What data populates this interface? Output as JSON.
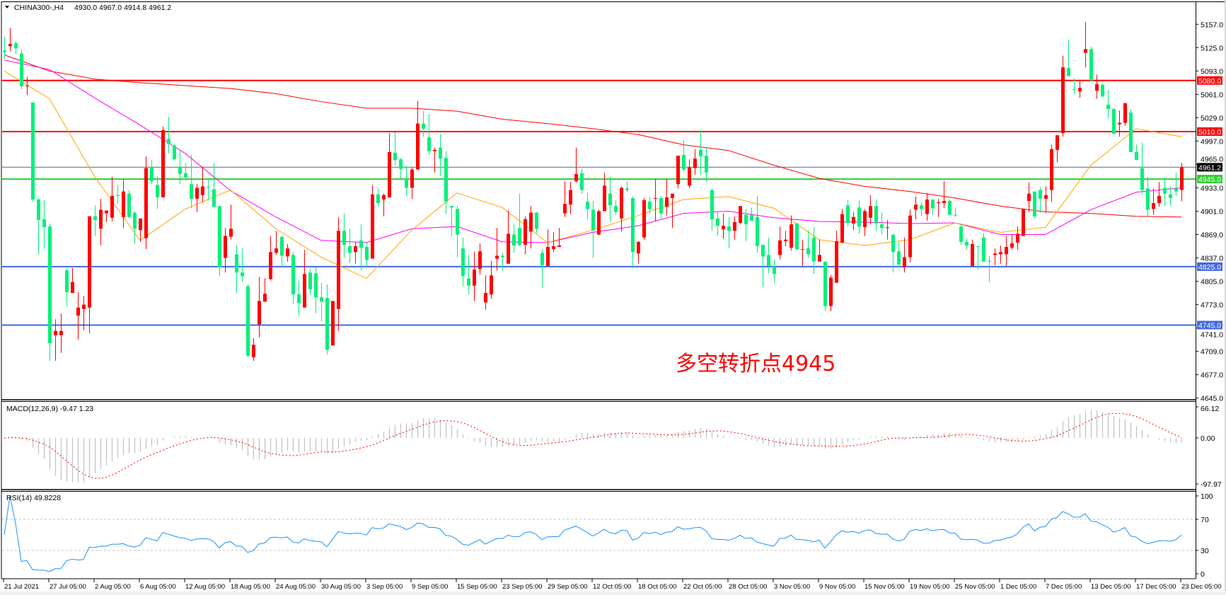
{
  "header": {
    "symbol": "CHINA300-,H4",
    "ohlc": "4930.0 4967.0 4914.8 4961.2",
    "menu_icon": "triangle-down-icon"
  },
  "annotation": "多空转折点4945",
  "colors": {
    "bull": "#ff0000",
    "bear": "#00f07a",
    "wick_bull": "#ff0000",
    "wick_bear": "#00f07a"
  },
  "chart_data": {
    "type": "candlestick",
    "timeframe": "H4",
    "ylim": [
      4645,
      5157
    ],
    "price_ticks": [
      "5157.0",
      "5125.0",
      "5093.0",
      "5061.0",
      "5029.0",
      "4997.0",
      "4965.0",
      "4933.0",
      "4901.0",
      "4869.0",
      "4837.0",
      "4805.0",
      "4773.0",
      "4741.0",
      "4709.0",
      "4677.0",
      "4645.0"
    ],
    "x_tick_labels": [
      "21 Jul 2021",
      "27 Jul 05:00",
      "2 Aug 05:00",
      "6 Aug 05:00",
      "12 Aug 05:00",
      "18 Aug 05:00",
      "24 Aug 05:00",
      "30 Aug 05:00",
      "3 Sep 05:00",
      "9 Sep 05:00",
      "15 Sep 05:00",
      "23 Sep 05:00",
      "29 Sep 05:00",
      "12 Oct 05:00",
      "18 Oct 05:00",
      "22 Oct 05:00",
      "28 Oct 05:00",
      "3 Nov 05:00",
      "9 Nov 05:00",
      "15 Nov 05:00",
      "19 Nov 05:00",
      "25 Nov 05:00",
      "1 Dec 05:00",
      "7 Dec 05:00",
      "13 Dec 05:00",
      "17 Dec 05:00",
      "23 Dec 05:00"
    ],
    "levels": [
      {
        "value": 5080.0,
        "label": "5080.0",
        "color": "#ff0000"
      },
      {
        "value": 5010.0,
        "label": "5010.0",
        "color": "#ff0000"
      },
      {
        "value": 4961.2,
        "label": "4961.2",
        "color": "#778899",
        "label_bg": "#000000"
      },
      {
        "value": 4945.0,
        "label": "4945.0",
        "color": "#32cd32"
      },
      {
        "value": 4825.0,
        "label": "4825.0",
        "color": "#4169e1"
      },
      {
        "value": 4745.0,
        "label": "4745.0",
        "color": "#4169e1"
      }
    ],
    "moving_averages": [
      {
        "color": "#ff0000",
        "values": [
          5115,
          5093,
          5082,
          5077,
          5073,
          5069,
          5062,
          5051,
          5042,
          5042,
          5038,
          5027,
          5021,
          5014,
          5006,
          4992,
          4984,
          4964,
          4946,
          4935,
          4928,
          4919,
          4908,
          4900,
          4898,
          4894,
          4893
        ]
      },
      {
        "color": "#ff00ff",
        "values": [
          5108,
          5095,
          5056,
          5019,
          4980,
          4929,
          4893,
          4861,
          4858,
          4877,
          4880,
          4859,
          4858,
          4872,
          4881,
          4898,
          4901,
          4892,
          4887,
          4886,
          4884,
          4885,
          4869,
          4869,
          4903,
          4927,
          4933
        ]
      },
      {
        "color": "#ffa500",
        "values": [
          5093,
          5055,
          4948,
          4861,
          4904,
          4930,
          4877,
          4838,
          4809,
          4875,
          4926,
          4906,
          4858,
          4875,
          4895,
          4917,
          4921,
          4905,
          4862,
          4854,
          4862,
          4885,
          4872,
          4879,
          4964,
          5014,
          5003
        ]
      }
    ],
    "candles": [
      [
        5121,
        5140,
        5110,
        5119
      ],
      [
        5127,
        5152,
        5120,
        5130
      ],
      [
        5131,
        5134,
        5116,
        5124
      ],
      [
        5117,
        5123,
        5068,
        5072
      ],
      [
        5072,
        5085,
        5060,
        5073
      ],
      [
        5050,
        5050,
        4914,
        4917
      ],
      [
        4917,
        4919,
        4842,
        4889
      ],
      [
        4890,
        4916,
        4850,
        4879
      ],
      [
        4880,
        4884,
        4696,
        4720
      ],
      [
        4731,
        4753,
        4696,
        4737
      ],
      [
        4731,
        4761,
        4707,
        4737
      ],
      [
        4820,
        4823,
        4770,
        4790
      ],
      [
        4789,
        4823,
        4789,
        4804
      ],
      [
        4758,
        4790,
        4725,
        4769
      ],
      [
        4767,
        4785,
        4738,
        4773
      ],
      [
        4769,
        4894,
        4734,
        4894
      ],
      [
        4894,
        4909,
        4867,
        4889
      ],
      [
        4877,
        4918,
        4854,
        4903
      ],
      [
        4898,
        4902,
        4886,
        4902
      ],
      [
        4892,
        4948,
        4887,
        4922
      ],
      [
        4923,
        4937,
        4911,
        4922
      ],
      [
        4893,
        4945,
        4878,
        4928
      ],
      [
        4925,
        4930,
        4892,
        4893
      ],
      [
        4899,
        4901,
        4856,
        4877
      ],
      [
        4875,
        4891,
        4859,
        4891
      ],
      [
        4864,
        4976,
        4849,
        4960
      ],
      [
        4961,
        4971,
        4938,
        4942
      ],
      [
        4937,
        4949,
        4904,
        4920
      ],
      [
        4920,
        5017,
        4920,
        5012
      ],
      [
        5000,
        5030,
        4980,
        4993
      ],
      [
        4991,
        4993,
        4970,
        4972
      ],
      [
        4961,
        4984,
        4938,
        4952
      ],
      [
        4953,
        4967,
        4943,
        4947
      ],
      [
        4938,
        4978,
        4905,
        4918
      ],
      [
        4918,
        4938,
        4900,
        4933
      ],
      [
        4923,
        4962,
        4913,
        4935
      ],
      [
        4934,
        4945,
        4916,
        4933
      ],
      [
        4931,
        4967,
        4906,
        4907
      ],
      [
        4908,
        4908,
        4812,
        4824
      ],
      [
        4837,
        4878,
        4817,
        4867
      ],
      [
        4866,
        4910,
        4862,
        4877
      ],
      [
        4842,
        4854,
        4788,
        4817
      ],
      [
        4817,
        4850,
        4804,
        4812
      ],
      [
        4798,
        4801,
        4701,
        4703
      ],
      [
        4701,
        4727,
        4696,
        4718
      ],
      [
        4746,
        4811,
        4728,
        4778
      ],
      [
        4777,
        4809,
        4777,
        4788
      ],
      [
        4808,
        4867,
        4806,
        4845
      ],
      [
        4844,
        4874,
        4841,
        4850
      ],
      [
        4866,
        4866,
        4824,
        4840
      ],
      [
        4839,
        4856,
        4832,
        4850
      ],
      [
        4841,
        4845,
        4774,
        4787
      ],
      [
        4787,
        4806,
        4758,
        4775
      ],
      [
        4769,
        4848,
        4769,
        4815
      ],
      [
        4817,
        4822,
        4786,
        4794
      ],
      [
        4816,
        4824,
        4761,
        4783
      ],
      [
        4783,
        4803,
        4750,
        4777
      ],
      [
        4782,
        4801,
        4705,
        4711
      ],
      [
        4717,
        4778,
        4717,
        4778
      ],
      [
        4767,
        4893,
        4737,
        4874
      ],
      [
        4874,
        4898,
        4837,
        4855
      ],
      [
        4853,
        4877,
        4830,
        4844
      ],
      [
        4845,
        4859,
        4829,
        4853
      ],
      [
        4861,
        4883,
        4820,
        4851
      ],
      [
        4852,
        4858,
        4825,
        4834
      ],
      [
        4836,
        4937,
        4836,
        4924
      ],
      [
        4924,
        4932,
        4907,
        4912
      ],
      [
        4917,
        4925,
        4894,
        4923
      ],
      [
        4920,
        5008,
        4919,
        4982
      ],
      [
        4981,
        5009,
        4964,
        4971
      ],
      [
        4972,
        4974,
        4946,
        4959
      ],
      [
        4945,
        4963,
        4922,
        4933
      ],
      [
        4933,
        4961,
        4918,
        4958
      ],
      [
        4958,
        5052,
        4958,
        5021
      ],
      [
        5021,
        5038,
        5003,
        5014
      ],
      [
        5002,
        5034,
        4978,
        4983
      ],
      [
        4983,
        4988,
        4954,
        4985
      ],
      [
        4988,
        5007,
        4949,
        4973
      ],
      [
        4974,
        4983,
        4897,
        4914
      ],
      [
        4908,
        4908,
        4867,
        4906
      ],
      [
        4904,
        4908,
        4838,
        4869
      ],
      [
        4850,
        4865,
        4798,
        4812
      ],
      [
        4809,
        4841,
        4787,
        4799
      ],
      [
        4799,
        4846,
        4778,
        4821
      ],
      [
        4822,
        4857,
        4814,
        4846
      ],
      [
        4776,
        4813,
        4766,
        4789
      ],
      [
        4787,
        4833,
        4781,
        4813
      ],
      [
        4836,
        4878,
        4820,
        4840
      ],
      [
        4840,
        4844,
        4820,
        4838
      ],
      [
        4829,
        4902,
        4829,
        4870
      ],
      [
        4869,
        4883,
        4844,
        4854
      ],
      [
        4878,
        4925,
        4853,
        4855
      ],
      [
        4855,
        4894,
        4842,
        4890
      ],
      [
        4873,
        4908,
        4850,
        4899
      ],
      [
        4899,
        4900,
        4871,
        4877
      ],
      [
        4844,
        4849,
        4796,
        4827
      ],
      [
        4826,
        4876,
        4826,
        4852
      ],
      [
        4849,
        4872,
        4845,
        4853
      ],
      [
        4852,
        4878,
        4852,
        4854
      ],
      [
        4898,
        4942,
        4893,
        4911
      ],
      [
        4910,
        4941,
        4897,
        4930
      ],
      [
        4942,
        4988,
        4940,
        4952
      ],
      [
        4953,
        4959,
        4925,
        4930
      ],
      [
        4914,
        4926,
        4890,
        4904
      ],
      [
        4903,
        4915,
        4837,
        4875
      ],
      [
        4869,
        4903,
        4868,
        4901
      ],
      [
        4901,
        4954,
        4901,
        4936
      ],
      [
        4925,
        4948,
        4887,
        4909
      ],
      [
        4908,
        4916,
        4896,
        4900
      ],
      [
        4891,
        4935,
        4873,
        4933
      ],
      [
        4932,
        4942,
        4927,
        4930
      ],
      [
        4919,
        4921,
        4823,
        4845
      ],
      [
        4843,
        4860,
        4829,
        4859
      ],
      [
        4865,
        4919,
        4862,
        4916
      ],
      [
        4914,
        4921,
        4898,
        4904
      ],
      [
        4918,
        4945,
        4887,
        4919
      ],
      [
        4919,
        4922,
        4891,
        4898
      ],
      [
        4907,
        4945,
        4895,
        4920
      ],
      [
        4919,
        4925,
        4878,
        4925
      ],
      [
        4938,
        4977,
        4932,
        4977
      ],
      [
        4978,
        4998,
        4955,
        4958
      ],
      [
        4936,
        4972,
        4933,
        4961
      ],
      [
        4960,
        4986,
        4951,
        4973
      ],
      [
        4985,
        5012,
        4951,
        4976
      ],
      [
        4977,
        4987,
        4941,
        4954
      ],
      [
        4930,
        4932,
        4874,
        4890
      ],
      [
        4891,
        4899,
        4868,
        4881
      ],
      [
        4876,
        4898,
        4863,
        4881
      ],
      [
        4880,
        4893,
        4850,
        4874
      ],
      [
        4874,
        4894,
        4862,
        4886
      ],
      [
        4885,
        4908,
        4883,
        4908
      ],
      [
        4896,
        4904,
        4860,
        4883
      ],
      [
        4896,
        4906,
        4888,
        4888
      ],
      [
        4893,
        4922,
        4844,
        4853
      ],
      [
        4855,
        4855,
        4797,
        4839
      ],
      [
        4841,
        4865,
        4816,
        4826
      ],
      [
        4825,
        4835,
        4803,
        4815
      ],
      [
        4841,
        4880,
        4835,
        4861
      ],
      [
        4860,
        4874,
        4853,
        4862
      ],
      [
        4851,
        4895,
        4847,
        4883
      ],
      [
        4884,
        4885,
        4848,
        4849
      ],
      [
        4849,
        4862,
        4826,
        4849
      ],
      [
        4850,
        4875,
        4837,
        4842
      ],
      [
        4865,
        4879,
        4815,
        4832
      ],
      [
        4832,
        4862,
        4832,
        4841
      ],
      [
        4832,
        4832,
        4764,
        4771
      ],
      [
        4771,
        4814,
        4764,
        4810
      ],
      [
        4803,
        4874,
        4803,
        4860
      ],
      [
        4858,
        4904,
        4857,
        4897
      ],
      [
        4909,
        4916,
        4880,
        4885
      ],
      [
        4884,
        4900,
        4875,
        4893
      ],
      [
        4906,
        4916,
        4870,
        4880
      ],
      [
        4879,
        4904,
        4867,
        4901
      ],
      [
        4892,
        4923,
        4883,
        4908
      ],
      [
        4908,
        4917,
        4874,
        4884
      ],
      [
        4883,
        4899,
        4869,
        4878
      ],
      [
        4878,
        4889,
        4862,
        4879
      ],
      [
        4869,
        4869,
        4817,
        4845
      ],
      [
        4846,
        4859,
        4824,
        4828
      ],
      [
        4824,
        4865,
        4817,
        4838
      ],
      [
        4838,
        4903,
        4831,
        4895
      ],
      [
        4903,
        4921,
        4890,
        4910
      ],
      [
        4909,
        4913,
        4894,
        4904
      ],
      [
        4897,
        4926,
        4888,
        4917
      ],
      [
        4917,
        4917,
        4896,
        4905
      ],
      [
        4912,
        4918,
        4893,
        4913
      ],
      [
        4912,
        4942,
        4905,
        4915
      ],
      [
        4915,
        4917,
        4896,
        4896
      ],
      [
        4896,
        4906,
        4893,
        4895
      ],
      [
        4880,
        4884,
        4855,
        4859
      ],
      [
        4859,
        4864,
        4848,
        4854
      ],
      [
        4826,
        4862,
        4826,
        4856
      ],
      [
        4853,
        4853,
        4821,
        4852
      ],
      [
        4865,
        4871,
        4832,
        4832
      ],
      [
        4833,
        4840,
        4804,
        4832
      ],
      [
        4841,
        4850,
        4827,
        4843
      ],
      [
        4842,
        4854,
        4829,
        4845
      ],
      [
        4842,
        4867,
        4826,
        4852
      ],
      [
        4851,
        4869,
        4848,
        4857
      ],
      [
        4858,
        4880,
        4848,
        4870
      ],
      [
        4867,
        4904,
        4867,
        4904
      ],
      [
        4915,
        4940,
        4900,
        4925
      ],
      [
        4928,
        4928,
        4891,
        4894
      ],
      [
        4930,
        4934,
        4899,
        4918
      ],
      [
        4918,
        4935,
        4899,
        4923
      ],
      [
        4930,
        4992,
        4914,
        4986
      ],
      [
        4985,
        5005,
        4968,
        5005
      ],
      [
        5008,
        5114,
        5003,
        5098
      ],
      [
        5097,
        5136,
        5086,
        5086
      ],
      [
        5068,
        5083,
        5061,
        5067
      ],
      [
        5065,
        5079,
        5056,
        5070
      ],
      [
        5118,
        5160,
        5098,
        5123
      ],
      [
        5123,
        5126,
        5080,
        5080
      ],
      [
        5066,
        5088,
        5055,
        5075
      ],
      [
        5074,
        5076,
        5058,
        5058
      ],
      [
        5047,
        5067,
        5029,
        5041
      ],
      [
        5041,
        5042,
        5006,
        5007
      ],
      [
        5020,
        5039,
        5003,
        5022
      ],
      [
        5022,
        5049,
        5018,
        5049
      ],
      [
        5036,
        5041,
        4982,
        4982
      ],
      [
        4982,
        4992,
        4971,
        4971
      ],
      [
        4960,
        4995,
        4924,
        4930
      ],
      [
        4932,
        4948,
        4893,
        4903
      ],
      [
        4904,
        4932,
        4896,
        4912
      ],
      [
        4912,
        4941,
        4907,
        4922
      ],
      [
        4933,
        4947,
        4908,
        4925
      ],
      [
        4924,
        4935,
        4908,
        4919
      ],
      [
        4932,
        4954,
        4922,
        4928
      ],
      [
        4930,
        4967,
        4914.8,
        4961.2
      ]
    ]
  },
  "macd": {
    "label": "MACD(12,26,9) -9.47 1.23",
    "axis": [
      "66.12",
      "0.00",
      "-97.97"
    ],
    "ylim": [
      -97.97,
      66.12
    ],
    "hist_color": "#c0c0c0",
    "signal_color": "#ff0000"
  },
  "rsi": {
    "label": "RSI(14) 49.8228",
    "axis": [
      "100",
      "70",
      "30",
      "0"
    ],
    "levels": [
      70,
      30
    ],
    "line_color": "#1e90ff"
  }
}
